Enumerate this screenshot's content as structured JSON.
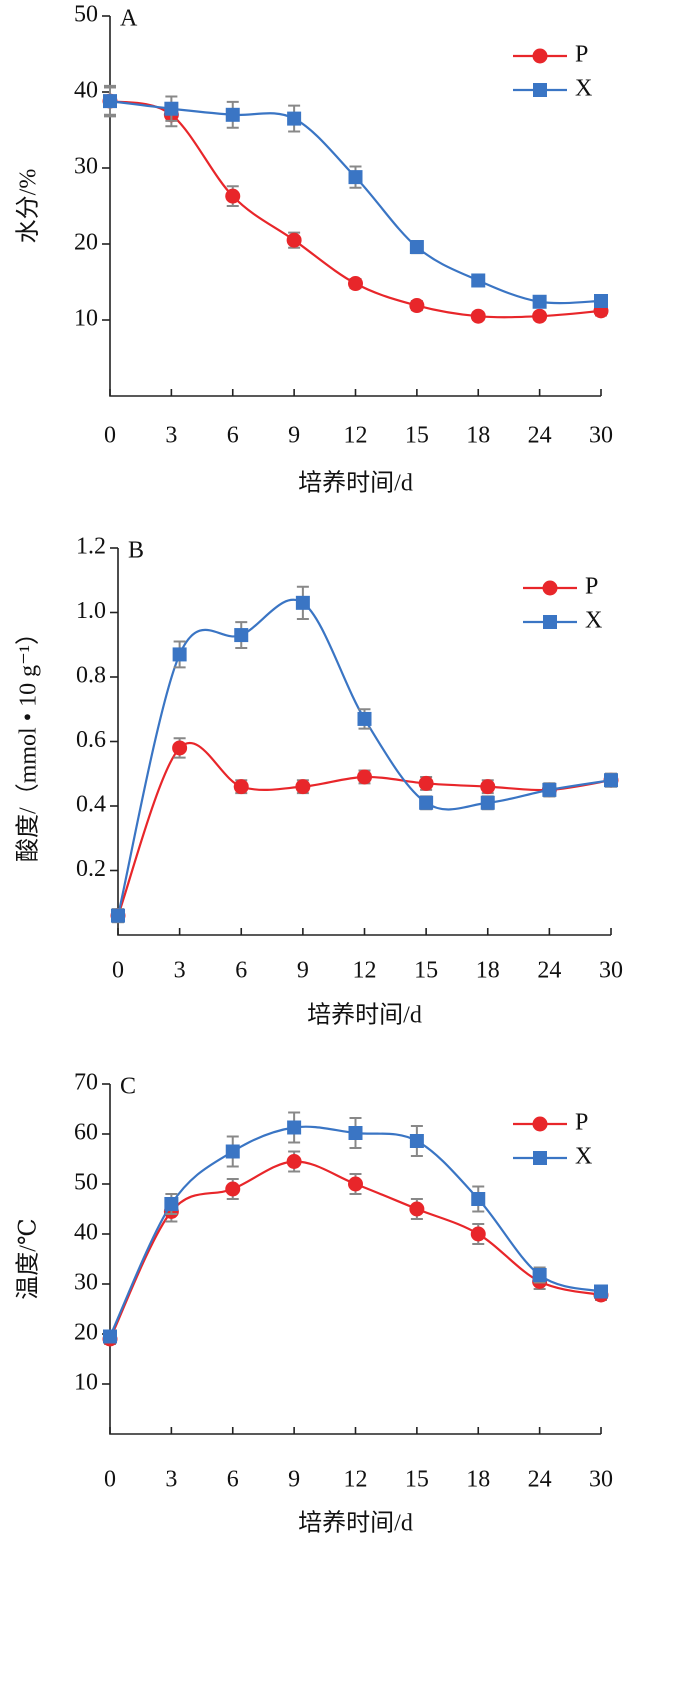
{
  "chart_data": [
    {
      "type": "line",
      "label": "A",
      "ylabel": "水分/%",
      "xlabel": "培养时间/d",
      "categories": [
        "0",
        "3",
        "6",
        "9",
        "12",
        "15",
        "18",
        "24",
        "30"
      ],
      "ylim": [
        0,
        50
      ],
      "yticks": [
        10,
        20,
        30,
        40,
        50
      ],
      "grid": false,
      "smooth": true,
      "legend": "upper right",
      "series": [
        {
          "name": "P",
          "color": "#e8262a",
          "marker": "circle",
          "values": [
            38.8,
            37,
            26.3,
            20.5,
            14.8,
            11.9,
            10.5,
            10.5,
            11.2
          ],
          "errors": [
            1.8,
            1.5,
            1.3,
            1,
            0.6,
            0.6,
            0.5,
            0.5,
            0.6
          ]
        },
        {
          "name": "X",
          "color": "#3a75c4",
          "marker": "square",
          "values": [
            38.8,
            37.8,
            37,
            36.5,
            28.8,
            19.6,
            15.2,
            12.4,
            12.5
          ],
          "errors": [
            2,
            1.6,
            1.7,
            1.7,
            1.4,
            0.8,
            0.5,
            0.6,
            0.6
          ]
        }
      ]
    },
    {
      "type": "line",
      "label": "B",
      "ylabel": "酸度/（mmol • 10 g⁻¹）",
      "xlabel": "培养时间/d",
      "categories": [
        "0",
        "3",
        "6",
        "9",
        "12",
        "15",
        "18",
        "24",
        "30"
      ],
      "ylim": [
        0,
        1.2
      ],
      "yticks": [
        0.2,
        0.4,
        0.6,
        0.8,
        {
          "value": 1,
          "label": "1.0"
        },
        1.2
      ],
      "grid": false,
      "smooth": true,
      "legend": "upper right",
      "series": [
        {
          "name": "P",
          "color": "#e8262a",
          "marker": "circle",
          "values": [
            0.06,
            0.58,
            0.46,
            0.46,
            0.49,
            0.47,
            0.46,
            0.45,
            0.48
          ],
          "errors": [
            0.02,
            0.03,
            0.02,
            0.02,
            0.02,
            0.02,
            0.02,
            0.02,
            0.02
          ]
        },
        {
          "name": "X",
          "color": "#3a75c4",
          "marker": "square",
          "values": [
            0.06,
            0.87,
            0.93,
            1.03,
            0.67,
            0.41,
            0.41,
            0.45,
            0.48
          ],
          "errors": [
            0.02,
            0.04,
            0.04,
            0.05,
            0.03,
            0.02,
            0.02,
            0.02,
            0.02
          ]
        }
      ]
    },
    {
      "type": "line",
      "label": "C",
      "ylabel": "温度/℃",
      "xlabel": "培养时间/d",
      "categories": [
        "0",
        "3",
        "6",
        "9",
        "12",
        "15",
        "18",
        "24",
        "30"
      ],
      "ylim": [
        0,
        70
      ],
      "yticks": [
        10,
        20,
        30,
        40,
        50,
        60,
        70
      ],
      "grid": false,
      "smooth": true,
      "legend": "upper right",
      "series": [
        {
          "name": "P",
          "color": "#e8262a",
          "marker": "circle",
          "values": [
            19,
            44.5,
            49,
            54.5,
            50,
            45,
            40,
            30.5,
            27.8
          ],
          "errors": [
            1,
            2,
            2,
            2,
            2,
            2,
            2,
            1.5,
            1
          ]
        },
        {
          "name": "X",
          "color": "#3a75c4",
          "marker": "square",
          "values": [
            19.5,
            46,
            56.5,
            61.3,
            60.2,
            58.6,
            47,
            31.8,
            28.5
          ],
          "errors": [
            1,
            2,
            3,
            3,
            3,
            3,
            2.5,
            1.5,
            1
          ]
        }
      ]
    }
  ]
}
